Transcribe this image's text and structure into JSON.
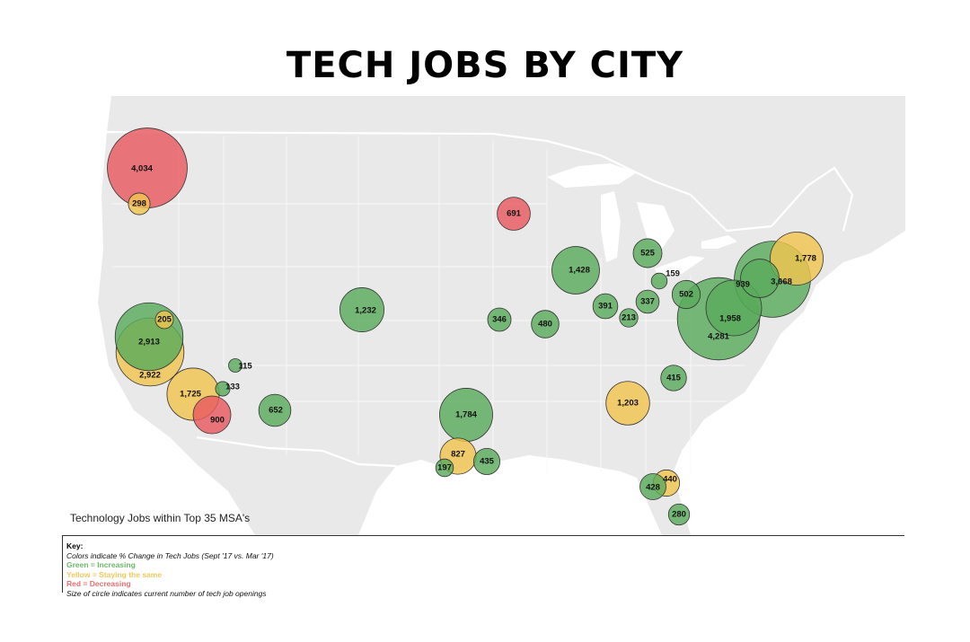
{
  "title": "TECH JOBS BY CITY",
  "caption": "Technology Jobs within Top 35 MSA's",
  "key": {
    "title": "Key:",
    "note": "Colors indicate % Change in Tech Jobs (Sept '17 vs. Mar '17)",
    "green": "Green = Increasing",
    "yellow": "Yellow = Staying the same",
    "red": "Red = Decreasing",
    "size_note": "Size of circle indicates current number of tech job openings"
  },
  "colors": {
    "increasing": "#5aab5c",
    "same": "#f1c550",
    "decreasing": "#e85a60",
    "land": "#e9e9e9",
    "water": "#ffffff"
  },
  "chart_data": {
    "type": "bubble-map",
    "size_measure": "current number of tech job openings",
    "color_measure": "% change in tech jobs (Sept '17 vs. Mar '17)",
    "points": [
      {
        "value": "4,034",
        "trend": "decreasing"
      },
      {
        "value": "298",
        "trend": "same"
      },
      {
        "value": "691",
        "trend": "decreasing"
      },
      {
        "value": "2,922",
        "trend": "same"
      },
      {
        "value": "2,913",
        "trend": "increasing"
      },
      {
        "value": "205",
        "trend": "same"
      },
      {
        "value": "115",
        "trend": "increasing"
      },
      {
        "value": "133",
        "trend": "increasing"
      },
      {
        "value": "1,725",
        "trend": "same"
      },
      {
        "value": "900",
        "trend": "decreasing"
      },
      {
        "value": "652",
        "trend": "increasing"
      },
      {
        "value": "1,232",
        "trend": "increasing"
      },
      {
        "value": "346",
        "trend": "increasing"
      },
      {
        "value": "480",
        "trend": "increasing"
      },
      {
        "value": "1,428",
        "trend": "increasing"
      },
      {
        "value": "391",
        "trend": "increasing"
      },
      {
        "value": "213",
        "trend": "increasing"
      },
      {
        "value": "337",
        "trend": "increasing"
      },
      {
        "value": "525",
        "trend": "increasing"
      },
      {
        "value": "159",
        "trend": "increasing"
      },
      {
        "value": "502",
        "trend": "increasing"
      },
      {
        "value": "4,281",
        "trend": "increasing"
      },
      {
        "value": "1,958",
        "trend": "increasing"
      },
      {
        "value": "939",
        "trend": "increasing"
      },
      {
        "value": "3,668",
        "trend": "increasing"
      },
      {
        "value": "1,778",
        "trend": "same"
      },
      {
        "value": "415",
        "trend": "increasing"
      },
      {
        "value": "1,203",
        "trend": "same"
      },
      {
        "value": "1,784",
        "trend": "increasing"
      },
      {
        "value": "827",
        "trend": "same"
      },
      {
        "value": "435",
        "trend": "increasing"
      },
      {
        "value": "197",
        "trend": "increasing"
      },
      {
        "value": "440",
        "trend": "same"
      },
      {
        "value": "428",
        "trend": "increasing"
      },
      {
        "value": "280",
        "trend": "increasing"
      }
    ]
  }
}
